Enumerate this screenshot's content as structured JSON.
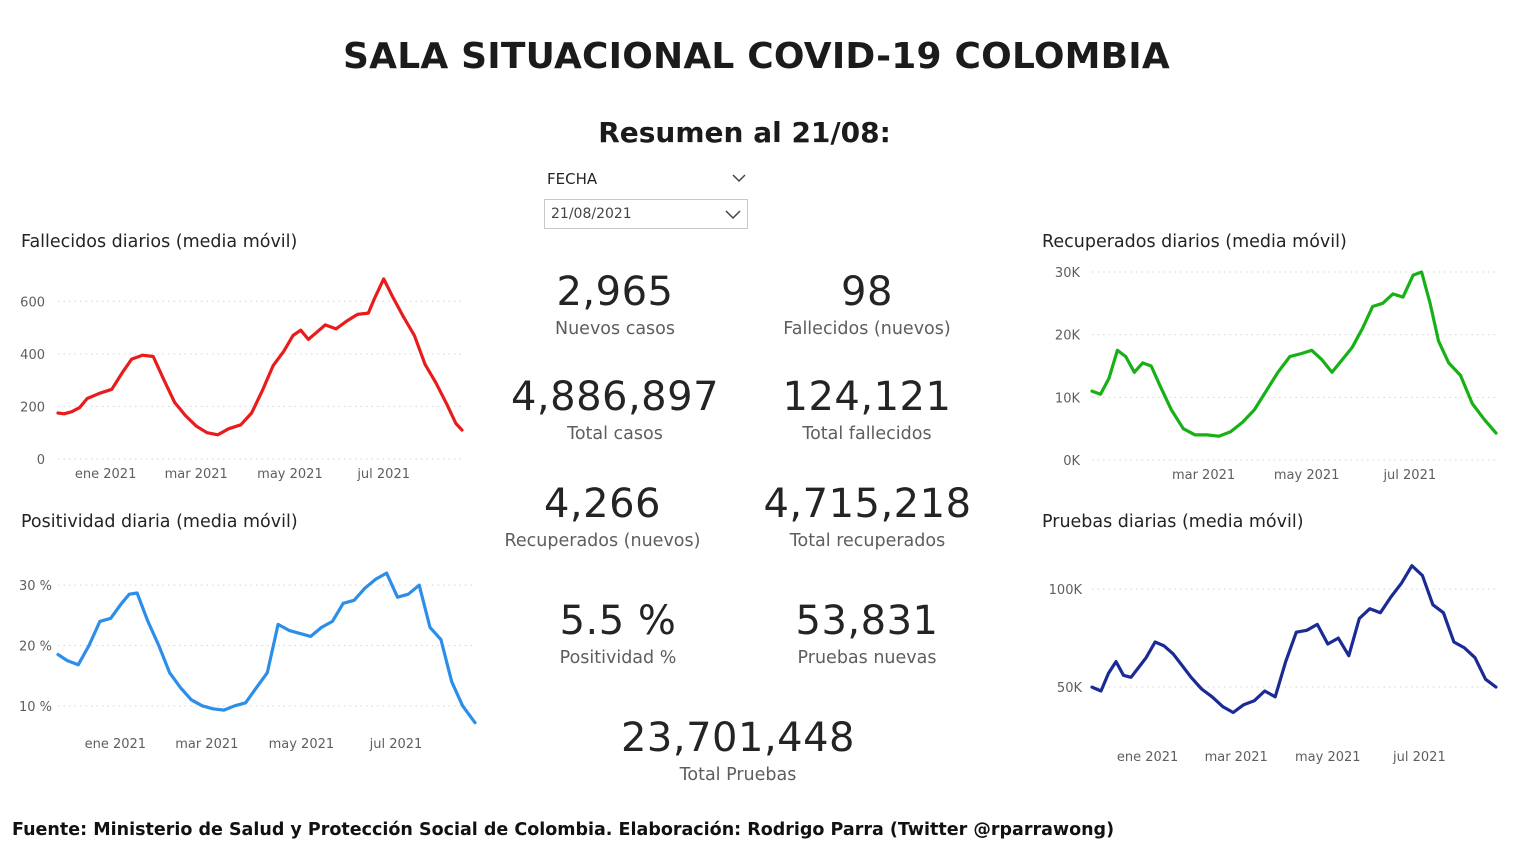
{
  "header": {
    "title": "SALA SITUACIONAL COVID-19 COLOMBIA",
    "subtitle": "Resumen al 21/08:"
  },
  "slicer": {
    "label": "FECHA",
    "selected": "21/08/2021"
  },
  "kpis": {
    "nuevos_casos": {
      "value": "2,965",
      "label": "Nuevos casos"
    },
    "fallecidos_nuevos": {
      "value": "98",
      "label": "Fallecidos (nuevos)"
    },
    "total_casos": {
      "value": "4,886,897",
      "label": "Total casos"
    },
    "total_fallecidos": {
      "value": "124,121",
      "label": "Total fallecidos"
    },
    "recuperados_nuevos": {
      "value": "4,266",
      "label": "Recuperados (nuevos)"
    },
    "total_recuperados": {
      "value": "4,715,218",
      "label": "Total recuperados"
    },
    "positividad": {
      "value": "5.5 %",
      "label": "Positividad %"
    },
    "pruebas_nuevas": {
      "value": "53,831",
      "label": "Pruebas nuevas"
    },
    "total_pruebas": {
      "value": "23,701,448",
      "label": "Total Pruebas"
    }
  },
  "footer": "Fuente: Ministerio de Salud y Protección Social de Colombia. Elaboración: Rodrigo Parra (Twitter @rparrawong)",
  "chart_data": [
    {
      "id": "fallecidos",
      "type": "line",
      "title": "Fallecidos diarios (media móvil)",
      "color": "#e81c1c",
      "xlim": [
        "2020-12-01",
        "2021-08-21"
      ],
      "ylim": [
        0,
        700
      ],
      "y_ticks": [
        0,
        200,
        400,
        600
      ],
      "y_tick_labels": [
        "0",
        "200",
        "400",
        "600"
      ],
      "x_ticks": [
        "2021-01-01",
        "2021-03-01",
        "2021-05-01",
        "2021-07-01"
      ],
      "x_tick_labels": [
        "ene 2021",
        "mar 2021",
        "may 2021",
        "jul 2021"
      ],
      "x": [
        "2020-12-01",
        "2020-12-05",
        "2020-12-10",
        "2020-12-15",
        "2020-12-20",
        "2020-12-28",
        "2021-01-05",
        "2021-01-12",
        "2021-01-18",
        "2021-01-25",
        "2021-02-01",
        "2021-02-08",
        "2021-02-15",
        "2021-02-22",
        "2021-03-01",
        "2021-03-08",
        "2021-03-15",
        "2021-03-22",
        "2021-03-30",
        "2021-04-06",
        "2021-04-13",
        "2021-04-20",
        "2021-04-27",
        "2021-05-03",
        "2021-05-08",
        "2021-05-13",
        "2021-05-18",
        "2021-05-24",
        "2021-05-31",
        "2021-06-07",
        "2021-06-14",
        "2021-06-21",
        "2021-06-25",
        "2021-07-01",
        "2021-07-07",
        "2021-07-14",
        "2021-07-21",
        "2021-07-28",
        "2021-08-04",
        "2021-08-11",
        "2021-08-17",
        "2021-08-21"
      ],
      "y": [
        175,
        172,
        180,
        195,
        230,
        250,
        265,
        330,
        380,
        395,
        390,
        300,
        215,
        165,
        125,
        100,
        92,
        115,
        130,
        175,
        260,
        355,
        410,
        470,
        490,
        455,
        480,
        510,
        495,
        525,
        550,
        555,
        610,
        685,
        615,
        540,
        470,
        360,
        290,
        210,
        135,
        110
      ]
    },
    {
      "id": "positividad",
      "type": "line",
      "title": "Positividad diaria (media móvil)",
      "color": "#2c8ee8",
      "xlim": [
        "2020-11-25",
        "2021-08-21"
      ],
      "ylim": [
        5,
        35
      ],
      "y_ticks": [
        10,
        20,
        30
      ],
      "y_tick_labels": [
        "10 %",
        "20 %",
        "30 %"
      ],
      "x_ticks": [
        "2021-01-01",
        "2021-03-01",
        "2021-05-01",
        "2021-07-01"
      ],
      "x_tick_labels": [
        "ene 2021",
        "mar 2021",
        "may 2021",
        "jul 2021"
      ],
      "x": [
        "2020-11-25",
        "2020-12-01",
        "2020-12-08",
        "2020-12-15",
        "2020-12-22",
        "2020-12-29",
        "2021-01-05",
        "2021-01-10",
        "2021-01-15",
        "2021-01-22",
        "2021-01-29",
        "2021-02-05",
        "2021-02-12",
        "2021-02-19",
        "2021-02-26",
        "2021-03-05",
        "2021-03-12",
        "2021-03-19",
        "2021-03-26",
        "2021-04-02",
        "2021-04-09",
        "2021-04-16",
        "2021-04-23",
        "2021-04-30",
        "2021-05-07",
        "2021-05-14",
        "2021-05-21",
        "2021-05-28",
        "2021-06-04",
        "2021-06-11",
        "2021-06-18",
        "2021-06-25",
        "2021-07-02",
        "2021-07-09",
        "2021-07-16",
        "2021-07-23",
        "2021-07-30",
        "2021-08-06",
        "2021-08-13",
        "2021-08-21"
      ],
      "y": [
        18.5,
        17.5,
        16.8,
        20,
        24,
        24.5,
        27,
        28.5,
        28.7,
        24,
        20,
        15.5,
        13,
        11,
        10,
        9.5,
        9.3,
        10,
        10.5,
        13,
        15.5,
        23.5,
        22.5,
        22,
        21.5,
        23,
        24,
        27,
        27.5,
        29.5,
        31,
        32,
        28,
        28.5,
        30,
        23,
        21,
        14,
        10,
        7.2
      ]
    },
    {
      "id": "recuperados",
      "type": "line",
      "title": "Recuperados diarios (media móvil)",
      "color": "#17b117",
      "xlim": [
        "2020-12-25",
        "2021-08-21"
      ],
      "ylim": [
        0,
        30000
      ],
      "y_ticks": [
        0,
        10000,
        20000,
        30000
      ],
      "y_tick_labels": [
        "0K",
        "10K",
        "20K",
        "30K"
      ],
      "x_ticks": [
        "2021-03-01",
        "2021-05-01",
        "2021-07-01"
      ],
      "x_tick_labels": [
        "mar 2021",
        "may 2021",
        "jul 2021"
      ],
      "x": [
        "2020-12-25",
        "2020-12-30",
        "2021-01-04",
        "2021-01-09",
        "2021-01-14",
        "2021-01-19",
        "2021-01-24",
        "2021-01-29",
        "2021-02-03",
        "2021-02-10",
        "2021-02-17",
        "2021-02-24",
        "2021-03-03",
        "2021-03-10",
        "2021-03-17",
        "2021-03-24",
        "2021-03-31",
        "2021-04-07",
        "2021-04-14",
        "2021-04-21",
        "2021-04-28",
        "2021-05-04",
        "2021-05-10",
        "2021-05-16",
        "2021-05-22",
        "2021-05-28",
        "2021-06-03",
        "2021-06-09",
        "2021-06-15",
        "2021-06-21",
        "2021-06-27",
        "2021-07-03",
        "2021-07-08",
        "2021-07-13",
        "2021-07-18",
        "2021-07-24",
        "2021-07-31",
        "2021-08-07",
        "2021-08-14",
        "2021-08-21"
      ],
      "y": [
        11000,
        10500,
        13000,
        17500,
        16500,
        14000,
        15500,
        15000,
        12000,
        8000,
        5000,
        4000,
        4000,
        3800,
        4500,
        6000,
        8000,
        11000,
        14000,
        16500,
        17000,
        17500,
        16000,
        14000,
        16000,
        18000,
        21000,
        24500,
        25000,
        26500,
        26000,
        29500,
        30000,
        25000,
        19000,
        15500,
        13500,
        9000,
        6500,
        4300
      ]
    },
    {
      "id": "pruebas",
      "type": "line",
      "title": "Pruebas diarias (media móvil)",
      "color": "#1b2b94",
      "xlim": [
        "2020-11-25",
        "2021-08-21"
      ],
      "ylim": [
        25000,
        120000
      ],
      "y_ticks": [
        50000,
        100000
      ],
      "y_tick_labels": [
        "50K",
        "100K"
      ],
      "x_ticks": [
        "2021-01-01",
        "2021-03-01",
        "2021-05-01",
        "2021-07-01"
      ],
      "x_tick_labels": [
        "ene 2021",
        "mar 2021",
        "may 2021",
        "jul 2021"
      ],
      "x": [
        "2020-11-25",
        "2020-12-01",
        "2020-12-06",
        "2020-12-11",
        "2020-12-16",
        "2020-12-21",
        "2020-12-26",
        "2020-12-31",
        "2021-01-06",
        "2021-01-12",
        "2021-01-18",
        "2021-01-24",
        "2021-01-30",
        "2021-02-06",
        "2021-02-13",
        "2021-02-20",
        "2021-02-27",
        "2021-03-06",
        "2021-03-13",
        "2021-03-20",
        "2021-03-27",
        "2021-04-03",
        "2021-04-10",
        "2021-04-17",
        "2021-04-24",
        "2021-05-01",
        "2021-05-08",
        "2021-05-15",
        "2021-05-22",
        "2021-05-29",
        "2021-06-05",
        "2021-06-12",
        "2021-06-19",
        "2021-06-26",
        "2021-07-03",
        "2021-07-10",
        "2021-07-17",
        "2021-07-24",
        "2021-07-31",
        "2021-08-07",
        "2021-08-14",
        "2021-08-21"
      ],
      "y": [
        50000,
        48000,
        57000,
        63000,
        56000,
        55000,
        60000,
        65000,
        73000,
        71000,
        67000,
        61000,
        55000,
        49000,
        45000,
        40000,
        37000,
        41000,
        43000,
        48000,
        45000,
        63000,
        78000,
        79000,
        82000,
        72000,
        75000,
        66000,
        85000,
        90000,
        88000,
        96000,
        103000,
        112000,
        107000,
        92000,
        88000,
        73000,
        70000,
        65000,
        54000,
        50000
      ]
    }
  ]
}
